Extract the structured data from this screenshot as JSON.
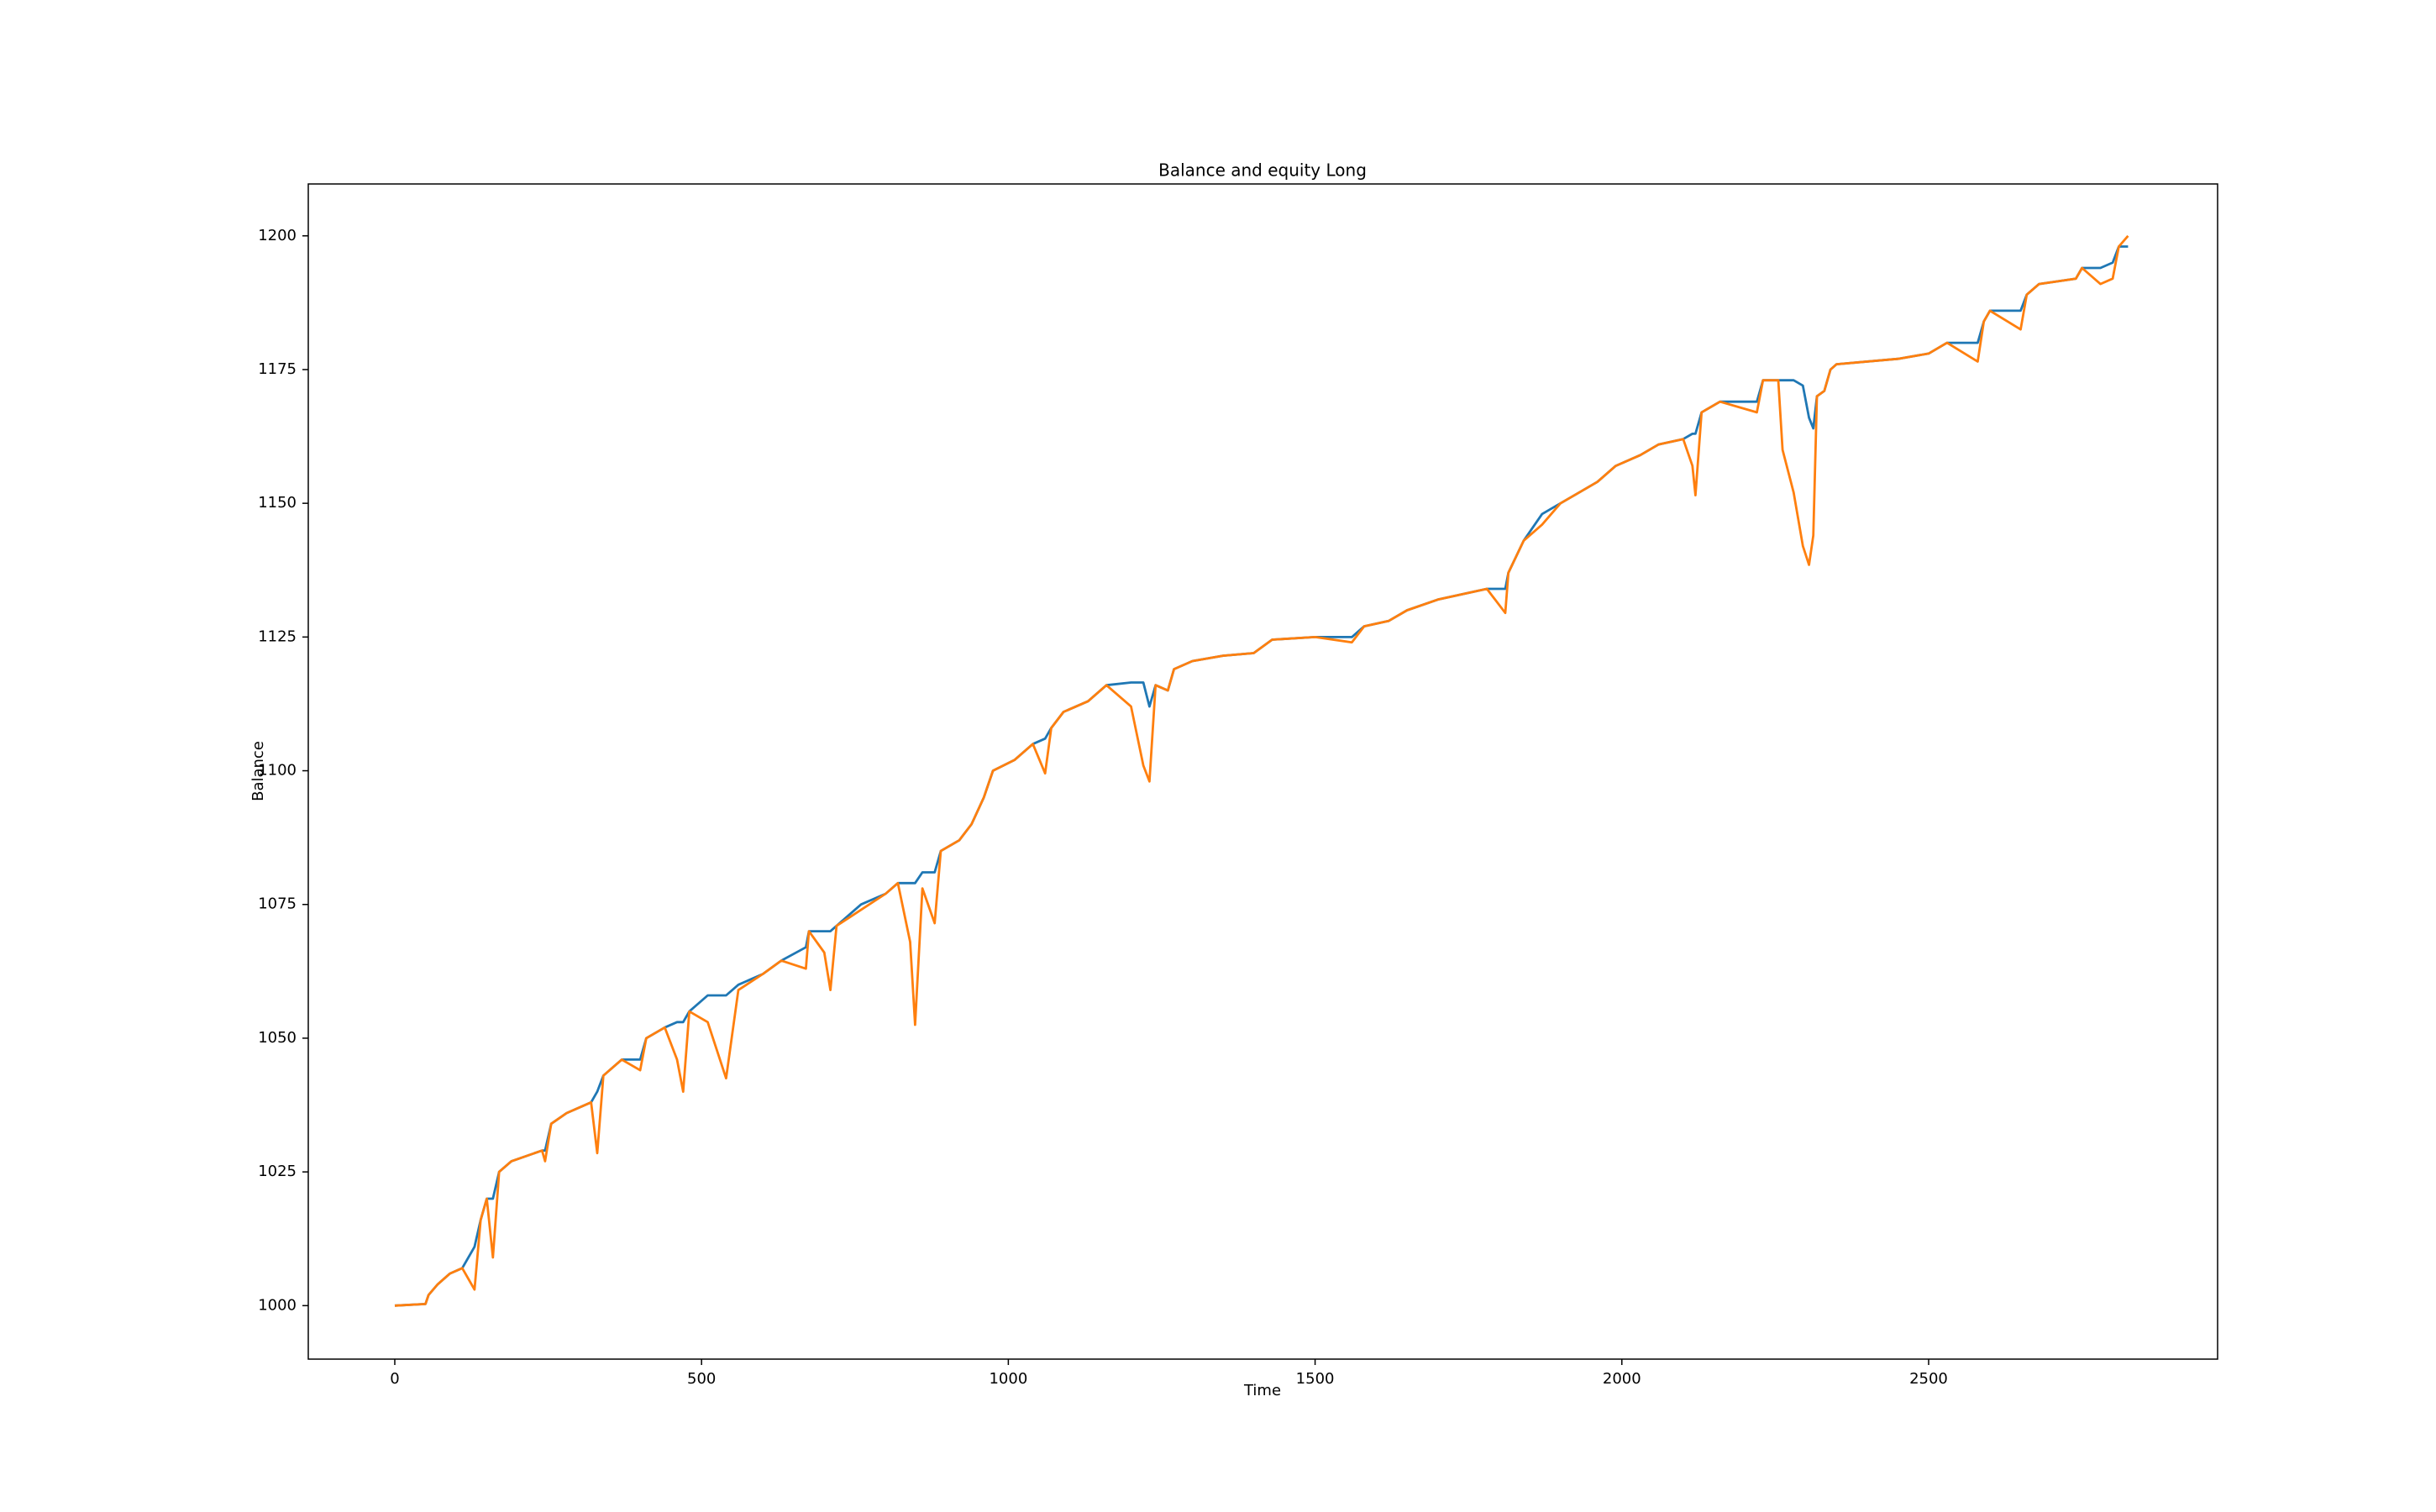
{
  "chart_data": {
    "type": "line",
    "title": "Balance and equity Long",
    "x_label": "Time",
    "y_label": "Balance",
    "x": [
      0,
      50,
      55,
      70,
      90,
      110,
      130,
      140,
      150,
      160,
      170,
      190,
      240,
      245,
      255,
      280,
      320,
      330,
      340,
      370,
      400,
      410,
      440,
      460,
      470,
      480,
      510,
      540,
      560,
      600,
      630,
      670,
      675,
      700,
      710,
      720,
      760,
      800,
      820,
      840,
      848,
      860,
      880,
      890,
      920,
      940,
      960,
      975,
      1010,
      1040,
      1060,
      1070,
      1090,
      1130,
      1160,
      1200,
      1220,
      1230,
      1240,
      1260,
      1270,
      1300,
      1350,
      1400,
      1430,
      1500,
      1560,
      1580,
      1620,
      1650,
      1700,
      1780,
      1810,
      1815,
      1840,
      1870,
      1900,
      1930,
      1960,
      1990,
      2030,
      2060,
      2100,
      2115,
      2120,
      2130,
      2160,
      2220,
      2230,
      2255,
      2262,
      2280,
      2295,
      2305,
      2312,
      2318,
      2330,
      2340,
      2350,
      2450,
      2500,
      2530,
      2580,
      2590,
      2600,
      2650,
      2660,
      2680,
      2740,
      2750,
      2780,
      2800,
      2810,
      2825
    ],
    "series": [
      {
        "color": "#1f77b4",
        "values": [
          1000,
          1000.3,
          1002,
          1004,
          1006,
          1007,
          1011,
          1016,
          1020,
          1020,
          1025,
          1027,
          1029,
          1029,
          1034,
          1036,
          1038,
          1040,
          1043,
          1046,
          1046,
          1050,
          1052,
          1053,
          1053,
          1055,
          1058,
          1058,
          1060,
          1062,
          1064.5,
          1067,
          1070,
          1070,
          1070,
          1071,
          1075,
          1077,
          1079,
          1079,
          1079,
          1081,
          1081,
          1085,
          1087,
          1090,
          1095,
          1100,
          1102,
          1105,
          1106,
          1108,
          1111,
          1113,
          1116,
          1116.5,
          1116.5,
          1112,
          1116,
          1115,
          1119,
          1120.5,
          1121.5,
          1122,
          1124.5,
          1125,
          1125,
          1127,
          1128,
          1130,
          1132,
          1134,
          1134,
          1137,
          1143,
          1148,
          1150,
          1152,
          1154,
          1157,
          1159,
          1161,
          1162,
          1163,
          1163,
          1167,
          1169,
          1169,
          1173,
          1173,
          1173,
          1173,
          1172,
          1166,
          1164,
          1170,
          1171,
          1175,
          1176,
          1177,
          1178,
          1180,
          1180,
          1184,
          1186,
          1186,
          1189,
          1191,
          1192,
          1194,
          1194,
          1195,
          1198,
          1198
        ]
      },
      {
        "color": "#ff7f0e",
        "values": [
          1000,
          1000.3,
          1002,
          1004,
          1006,
          1007,
          1003,
          1016,
          1020,
          1009,
          1025,
          1027,
          1029,
          1027,
          1034,
          1036,
          1038,
          1028.5,
          1043,
          1046,
          1044,
          1050,
          1052,
          1046,
          1040,
          1055,
          1053,
          1042.5,
          1059,
          1062,
          1064.5,
          1063,
          1070,
          1066,
          1059,
          1071,
          1074,
          1077,
          1079,
          1068,
          1052.5,
          1078,
          1071.5,
          1085,
          1087,
          1090,
          1095,
          1100,
          1102,
          1105,
          1099.5,
          1108,
          1111,
          1113,
          1116,
          1112,
          1101,
          1098,
          1116,
          1115,
          1119,
          1120.5,
          1121.5,
          1122,
          1124.5,
          1125,
          1124,
          1127,
          1128,
          1130,
          1132,
          1134,
          1129.5,
          1137,
          1143,
          1146,
          1150,
          1152,
          1154,
          1157,
          1159,
          1161,
          1162,
          1157,
          1151.5,
          1167,
          1169,
          1167,
          1173,
          1173,
          1160,
          1152,
          1142,
          1138.5,
          1144,
          1170,
          1171,
          1175,
          1176,
          1177,
          1178,
          1180,
          1176.5,
          1184,
          1186,
          1182.5,
          1189,
          1191,
          1192,
          1194,
          1191,
          1192,
          1198,
          1200
        ]
      }
    ],
    "xlim": [
      -141,
      2971
    ],
    "ylim": [
      990,
      1209.7
    ],
    "xticks": [
      0,
      500,
      1000,
      1500,
      2000,
      2500
    ],
    "yticks": [
      1000,
      1025,
      1050,
      1075,
      1100,
      1125,
      1150,
      1175,
      1200
    ],
    "grid": false
  }
}
